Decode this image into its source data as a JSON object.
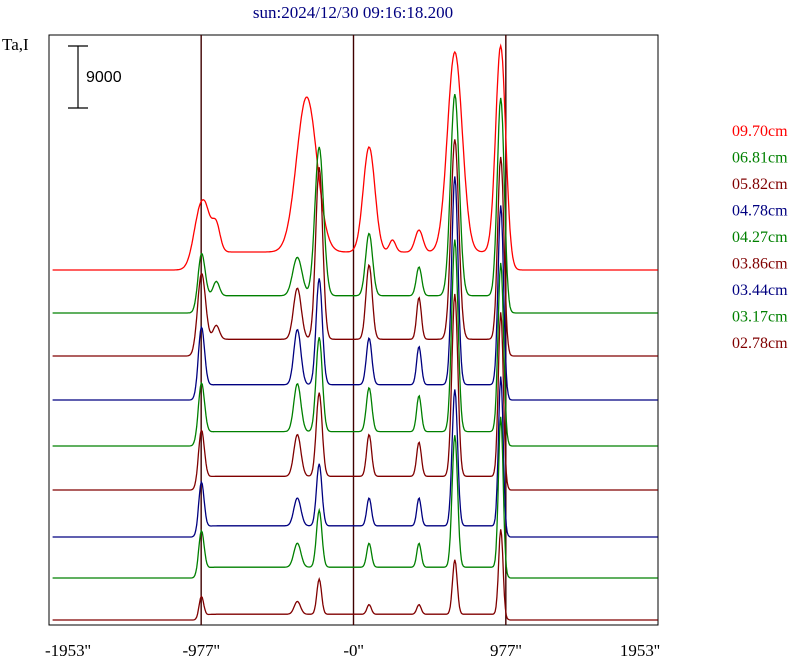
{
  "chart_data": {
    "type": "line",
    "title": "sun:2024/12/30 09:16:18.200",
    "ylabel": "Ta,I",
    "scale_bar_label": "9000",
    "x_tick_labels": [
      "-1953''",
      "-977''",
      "-0''",
      "977''",
      "1953''"
    ],
    "x_ticks": [
      -1953,
      -977,
      0,
      977,
      1953
    ],
    "xlim": [
      -1953,
      1953
    ],
    "vertical_lines": [
      -977,
      0,
      977
    ],
    "colors": {
      "red": "#ff0000",
      "green": "#008000",
      "darkred": "#800000",
      "blue": "#000080"
    },
    "series": [
      {
        "name": "09.70cm",
        "color": "#ff0000",
        "scale": 1.0,
        "baseline": 270,
        "peaks": [
          [
            -976,
            65,
            90
          ],
          [
            -300,
            155,
            130
          ],
          [
            100,
            105,
            75
          ],
          [
            650,
            200,
            95
          ],
          [
            945,
            210,
            65
          ],
          [
            -880,
            25,
            50
          ],
          [
            250,
            12,
            40
          ],
          [
            420,
            22,
            50
          ]
        ]
      },
      {
        "name": "06.81cm",
        "color": "#008000",
        "scale": 0.96,
        "baseline": 313,
        "peaks": [
          [
            -976,
            58,
            45
          ],
          [
            -220,
            155,
            55
          ],
          [
            100,
            65,
            45
          ],
          [
            650,
            210,
            55
          ],
          [
            945,
            210,
            45
          ],
          [
            -360,
            40,
            60
          ],
          [
            420,
            30,
            35
          ],
          [
            -880,
            15,
            40
          ]
        ]
      },
      {
        "name": "05.82cm",
        "color": "#800000",
        "scale": 0.93,
        "baseline": 356,
        "peaks": [
          [
            -976,
            85,
            50
          ],
          [
            -220,
            185,
            45
          ],
          [
            100,
            80,
            40
          ],
          [
            650,
            215,
            50
          ],
          [
            945,
            200,
            40
          ],
          [
            -360,
            55,
            50
          ],
          [
            420,
            45,
            30
          ],
          [
            -880,
            15,
            40
          ]
        ]
      },
      {
        "name": "04.78cm",
        "color": "#000080",
        "scale": 0.85,
        "baseline": 400,
        "peaks": [
          [
            -976,
            82,
            40
          ],
          [
            -220,
            125,
            40
          ],
          [
            100,
            55,
            35
          ],
          [
            650,
            245,
            40
          ],
          [
            945,
            215,
            35
          ],
          [
            -360,
            65,
            45
          ],
          [
            420,
            45,
            30
          ]
        ]
      },
      {
        "name": "04.27cm",
        "color": "#008000",
        "scale": 0.8,
        "baseline": 446,
        "peaks": [
          [
            -976,
            75,
            40
          ],
          [
            -220,
            118,
            40
          ],
          [
            100,
            55,
            35
          ],
          [
            650,
            240,
            40
          ],
          [
            945,
            215,
            35
          ],
          [
            -360,
            60,
            45
          ],
          [
            420,
            45,
            30
          ]
        ]
      },
      {
        "name": "03.86cm",
        "color": "#800000",
        "scale": 0.76,
        "baseline": 490,
        "peaks": [
          [
            -976,
            75,
            38
          ],
          [
            -220,
            110,
            38
          ],
          [
            100,
            55,
            32
          ],
          [
            650,
            240,
            38
          ],
          [
            945,
            220,
            32
          ],
          [
            -360,
            55,
            45
          ],
          [
            420,
            45,
            30
          ]
        ]
      },
      {
        "name": "03.44cm",
        "color": "#000080",
        "scale": 0.62,
        "baseline": 537,
        "peaks": [
          [
            -976,
            85,
            35
          ],
          [
            -220,
            100,
            35
          ],
          [
            100,
            45,
            30
          ],
          [
            650,
            220,
            35
          ],
          [
            945,
            245,
            30
          ],
          [
            -360,
            45,
            45
          ],
          [
            420,
            45,
            28
          ]
        ]
      },
      {
        "name": "03.17cm",
        "color": "#008000",
        "scale": 0.6,
        "baseline": 578,
        "peaks": [
          [
            -976,
            75,
            35
          ],
          [
            -220,
            95,
            35
          ],
          [
            100,
            40,
            30
          ],
          [
            650,
            220,
            35
          ],
          [
            945,
            255,
            30
          ],
          [
            -360,
            40,
            45
          ],
          [
            420,
            40,
            28
          ]
        ]
      },
      {
        "name": "02.78cm",
        "color": "#800000",
        "scale": 0.32,
        "baseline": 620,
        "peaks": [
          [
            -976,
            70,
            30
          ],
          [
            -220,
            110,
            30
          ],
          [
            100,
            30,
            28
          ],
          [
            650,
            170,
            30
          ],
          [
            945,
            270,
            28
          ],
          [
            -360,
            40,
            40
          ],
          [
            420,
            30,
            28
          ]
        ]
      }
    ]
  }
}
